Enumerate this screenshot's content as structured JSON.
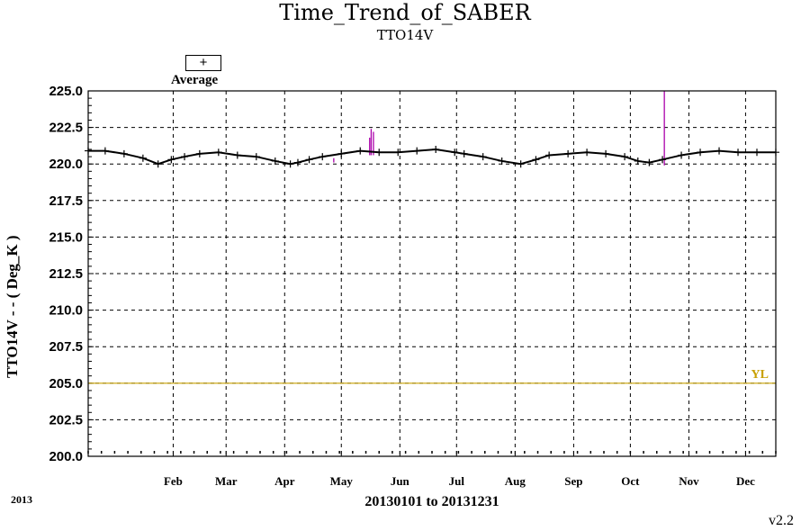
{
  "chart_data": {
    "type": "line",
    "title": "Time_Trend_of_SABER",
    "subtitle": "TTO14V",
    "ylabel": "TTO14V  - - ( Deg_K )",
    "xlabel": "20130101 to 20131231",
    "year_label": "2013",
    "version": "v2.2",
    "legend": {
      "symbol": "+",
      "label": "Average"
    },
    "ylim": [
      200.0,
      225.0
    ],
    "yticks": [
      "200.0",
      "202.5",
      "205.0",
      "207.5",
      "210.0",
      "212.5",
      "215.0",
      "217.5",
      "220.0",
      "222.5",
      "225.0"
    ],
    "xlim_day": [
      1,
      365
    ],
    "month_labels": [
      {
        "label": "Feb",
        "day": 46
      },
      {
        "label": "Mar",
        "day": 74
      },
      {
        "label": "Apr",
        "day": 105
      },
      {
        "label": "May",
        "day": 135
      },
      {
        "label": "Jun",
        "day": 166
      },
      {
        "label": "Jul",
        "day": 196
      },
      {
        "label": "Aug",
        "day": 227
      },
      {
        "label": "Sep",
        "day": 258
      },
      {
        "label": "Oct",
        "day": 288
      },
      {
        "label": "Nov",
        "day": 319
      },
      {
        "label": "Dec",
        "day": 349
      }
    ],
    "grid": true,
    "reference_line": {
      "label": "YL",
      "value": 205.0,
      "color": "#c8a000"
    },
    "series": [
      {
        "type": "average",
        "color": "#000000",
        "x_day": [
          1,
          10,
          20,
          30,
          38,
          45,
          52,
          60,
          70,
          80,
          90,
          100,
          108,
          112,
          118,
          125,
          135,
          145,
          155,
          165,
          175,
          185,
          195,
          200,
          210,
          220,
          230,
          238,
          245,
          255,
          265,
          275,
          285,
          292,
          298,
          305,
          315,
          325,
          335,
          345,
          355,
          365
        ],
        "y": [
          220.9,
          220.9,
          220.7,
          220.4,
          220.0,
          220.3,
          220.5,
          220.7,
          220.8,
          220.6,
          220.5,
          220.2,
          220.0,
          220.1,
          220.3,
          220.5,
          220.7,
          220.9,
          220.8,
          220.8,
          220.9,
          221.0,
          220.8,
          220.7,
          220.5,
          220.2,
          220.0,
          220.3,
          220.6,
          220.7,
          220.8,
          220.7,
          220.5,
          220.2,
          220.1,
          220.3,
          220.6,
          220.8,
          220.9,
          220.8,
          220.8,
          220.8
        ]
      },
      {
        "type": "spikes",
        "color": "#aa00aa",
        "x_day": [
          131,
          150,
          150.8,
          152,
          306
        ],
        "y_low": [
          220.1,
          220.6,
          220.6,
          220.6,
          219.9
        ],
        "y_high": [
          220.4,
          221.8,
          222.4,
          222.2,
          225.0
        ]
      }
    ]
  }
}
